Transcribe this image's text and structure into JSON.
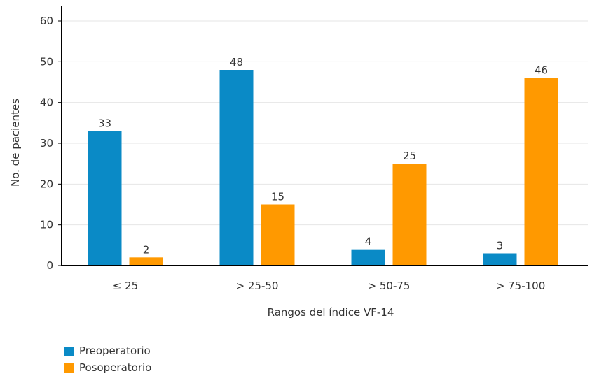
{
  "chart_data": {
    "type": "bar",
    "categories": [
      "≤ 25",
      "> 25-50",
      "> 50-75",
      "> 75-100"
    ],
    "series": [
      {
        "name": "Preoperatorio",
        "values": [
          33,
          48,
          4,
          3
        ],
        "color": "#0a8ac6"
      },
      {
        "name": "Posoperatorio",
        "values": [
          2,
          15,
          25,
          46
        ],
        "color": "#ff9900"
      }
    ],
    "xlabel": "Rangos del índice VF-14",
    "ylabel": "No. de pacientes",
    "ylim": [
      0,
      60
    ],
    "yticks": [
      "0",
      "10",
      "20",
      "30",
      "40",
      "50",
      "60"
    ],
    "grid": true,
    "legend_position": "bottom-left"
  }
}
